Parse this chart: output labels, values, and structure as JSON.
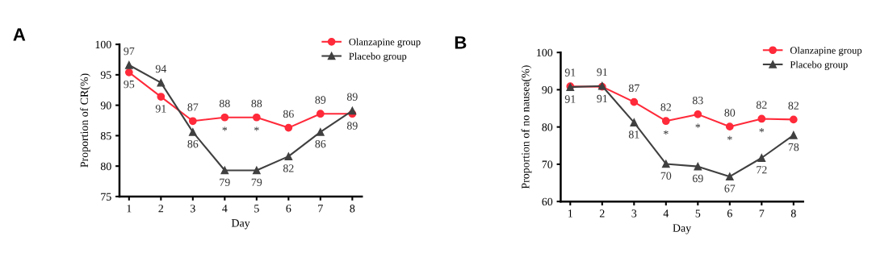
{
  "chart_data": [
    {
      "type": "line",
      "title": "A",
      "xlabel": "Day",
      "ylabel": "Proportion of CR(%)",
      "categories": [
        "1",
        "2",
        "3",
        "4",
        "5",
        "6",
        "7",
        "8"
      ],
      "ylim": [
        75,
        100
      ],
      "yticks": [
        75,
        80,
        85,
        90,
        95,
        100
      ],
      "legend": "top right",
      "grid": false,
      "series": [
        {
          "name": "Olanzapine group",
          "color": "#ff2a3a",
          "marker": "circle",
          "values": [
            95.4,
            91.4,
            87.4,
            88.0,
            88.0,
            86.3,
            88.6,
            88.6
          ],
          "value_labels": [
            "95",
            "91",
            "87",
            "88",
            "88",
            "86",
            "89",
            "89"
          ]
        },
        {
          "name": "Placebo group",
          "color": "#404040",
          "marker": "triangle",
          "values": [
            96.6,
            93.7,
            85.6,
            79.3,
            79.3,
            81.6,
            85.6,
            89.1
          ],
          "value_labels": [
            "97",
            "94",
            "86",
            "79",
            "79",
            "82",
            "86",
            "89"
          ]
        }
      ],
      "annotations": [
        {
          "text": "*",
          "x": "4",
          "y": 88.0
        },
        {
          "text": "*",
          "x": "5",
          "y": 88.0
        }
      ]
    },
    {
      "type": "line",
      "title": "B",
      "xlabel": "Day",
      "ylabel": "Proportion of no nausea(%)",
      "categories": [
        "1",
        "2",
        "3",
        "4",
        "5",
        "6",
        "7",
        "8"
      ],
      "ylim": [
        60,
        100
      ],
      "yticks": [
        60,
        70,
        80,
        90,
        100
      ],
      "legend": "top right",
      "grid": false,
      "series": [
        {
          "name": "Olanzapine group",
          "color": "#ff2a3a",
          "marker": "circle",
          "values": [
            90.9,
            90.8,
            86.7,
            81.6,
            83.4,
            80.1,
            82.2,
            82.0
          ],
          "value_labels": [
            "91",
            "91",
            "87",
            "82",
            "83",
            "80",
            "82",
            "82"
          ]
        },
        {
          "name": "Placebo group",
          "color": "#404040",
          "marker": "triangle",
          "values": [
            90.7,
            91.0,
            81.2,
            70.1,
            69.4,
            66.7,
            71.7,
            77.8
          ],
          "value_labels": [
            "91",
            "91",
            "81",
            "70",
            "69",
            "67",
            "72",
            "78"
          ]
        }
      ],
      "annotations": [
        {
          "text": "*",
          "x": "4",
          "y": 81.6
        },
        {
          "text": "*",
          "x": "5",
          "y": 83.4
        },
        {
          "text": "*",
          "x": "6",
          "y": 80.1
        },
        {
          "text": "*",
          "x": "7",
          "y": 82.2
        }
      ]
    }
  ]
}
